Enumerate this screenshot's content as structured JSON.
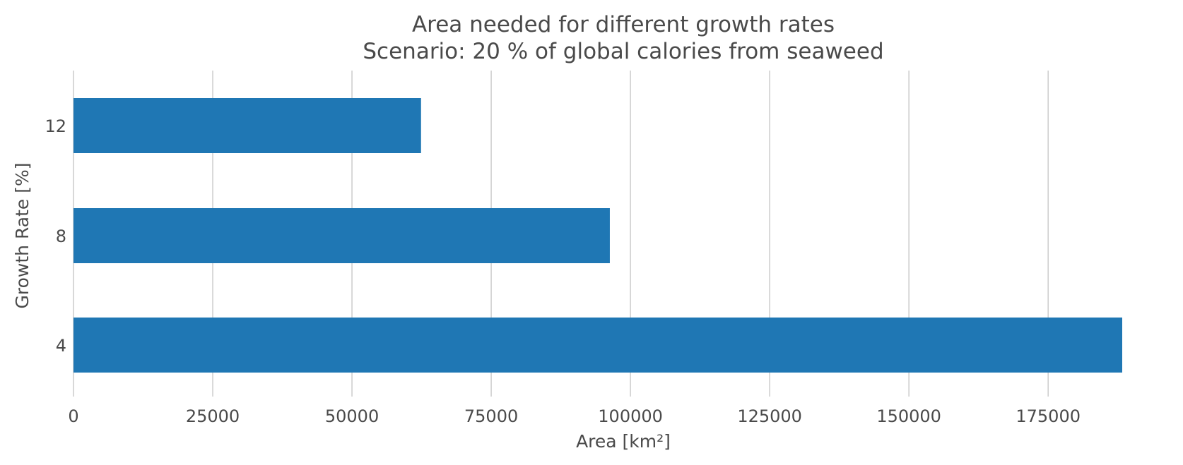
{
  "chart_data": {
    "type": "bar",
    "orientation": "horizontal",
    "title": "Area needed for different growth rates",
    "subtitle": "Scenario: 20 % of global calories from seaweed",
    "xlabel": "Area [km²]",
    "ylabel": "Growth Rate [%]",
    "categories": [
      "4",
      "8",
      "12"
    ],
    "values": [
      188300,
      96300,
      62400
    ],
    "xlim": [
      0,
      188300
    ],
    "xticks": [
      0,
      25000,
      50000,
      75000,
      100000,
      125000,
      150000,
      175000
    ],
    "xtick_labels": [
      "0",
      "25000",
      "50000",
      "75000",
      "100000",
      "125000",
      "150000",
      "175000"
    ],
    "grid": "x",
    "bar_color": "#1f77b4",
    "text_color": "#4a4a4a",
    "grid_color": "#cfcfcf"
  }
}
